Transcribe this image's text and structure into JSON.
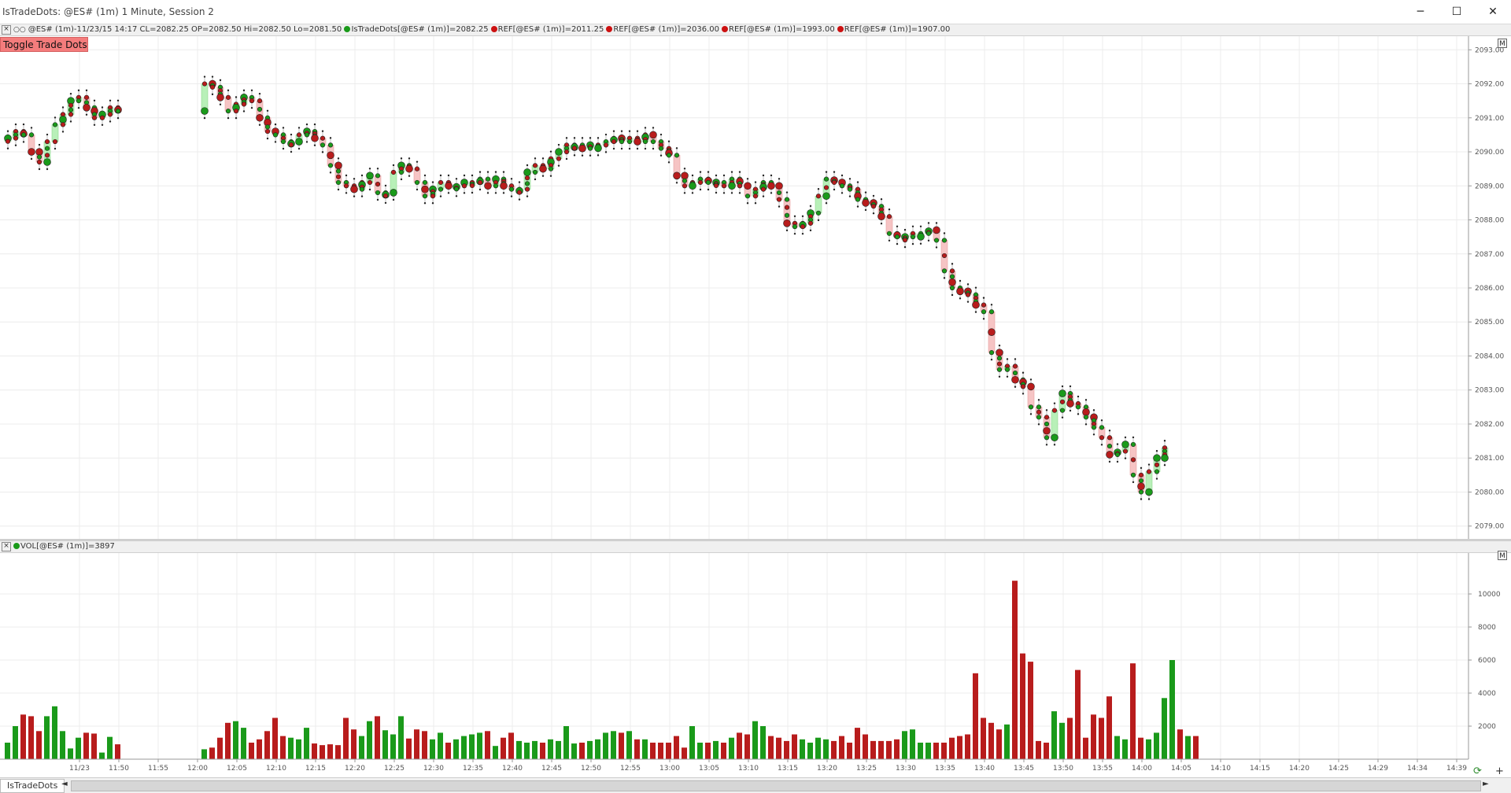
{
  "window": {
    "title": "IsTradeDots: @ES# (1m) 1 Minute, Session 2"
  },
  "price_pane": {
    "info_prefix": "@ES# (1m)-11/23/15 14:17 CL=2082.25 OP=2082.50 Hi=2082.50 Lo=2081.50",
    "studies": [
      {
        "label": "IsTradeDots[@ES# (1m)]=2082.25",
        "color": "#1a9a1a"
      },
      {
        "label": "REF[@ES# (1m)]=2011.25",
        "color": "#cc1111"
      },
      {
        "label": "REF[@ES# (1m)]=2036.00",
        "color": "#cc1111"
      },
      {
        "label": "REF[@ES# (1m)]=1993.00",
        "color": "#cc1111"
      },
      {
        "label": "REF[@ES# (1m)]=1907.00",
        "color": "#cc1111"
      }
    ],
    "toggle_button": "Toggle Trade Dots",
    "m_button": "M"
  },
  "volume_pane": {
    "info": "VOL[@ES# (1m)]=3897",
    "m_button": "M"
  },
  "bottom": {
    "tab": "IsTradeDots",
    "left_arrow": "◄",
    "right_arrow": "►"
  },
  "colors": {
    "up": "#1a9a1a",
    "down": "#b81c1c",
    "up_fill": "#b8f0b8",
    "down_fill": "#f6c4c4"
  },
  "chart_data": [
    {
      "type": "line",
      "series": [
        {
          "values": [
            2090.4,
            2090.6,
            2090.5,
            2090.0,
            2089.7,
            2090.3,
            2090.8,
            2091.1,
            2091.5,
            2091.6,
            2091.3,
            2091.0,
            2091.1,
            2091.3,
            2091.2,
            2092.0,
            2091.9,
            2091.6,
            2091.2,
            2091.4,
            2091.6,
            2091.5,
            2091.0,
            2090.6,
            2090.5,
            2090.3,
            2090.3,
            2090.5,
            2090.6,
            2090.4,
            2090.2,
            2089.6,
            2089.1,
            2089.0,
            2088.9,
            2089.1,
            2089.3,
            2088.8,
            2088.8,
            2089.4,
            2089.6,
            2089.5,
            2089.1,
            2088.7,
            2088.9,
            2089.1,
            2089.0,
            2089.0,
            2089.1,
            2089.1,
            2089.2,
            2089.0,
            2089.2,
            2089.0,
            2088.9,
            2088.9,
            2089.4,
            2089.6,
            2089.5,
            2089.8,
            2090.0,
            2090.2,
            2090.2,
            2090.1,
            2090.2,
            2090.2,
            2090.3,
            2090.4,
            2090.3,
            2090.4,
            2090.3,
            2090.5,
            2090.3,
            2090.1,
            2089.9,
            2089.3,
            2089.0,
            2089.1,
            2089.2,
            2089.1,
            2089.1,
            2089.0,
            2089.2,
            2089.0,
            2088.7,
            2088.9,
            2089.1,
            2089.0,
            2088.6,
            2087.9,
            2087.8,
            2087.9,
            2088.2,
            2088.7,
            2089.2,
            2089.1,
            2089.0,
            2088.9,
            2088.6,
            2088.5,
            2088.4,
            2088.1,
            2087.6,
            2087.5,
            2087.5,
            2087.6,
            2087.6,
            2087.7,
            2087.4,
            2086.5,
            2086.0,
            2085.9,
            2085.8,
            2085.5,
            2085.3,
            2084.1,
            2083.6,
            2083.7,
            2083.3,
            2083.1,
            2082.5,
            2082.2,
            2081.6,
            2082.4,
            2082.9,
            2082.6,
            2082.5,
            2082.2,
            2081.9,
            2081.6,
            2081.1,
            2081.2,
            2081.4,
            2080.5,
            2080.0,
            2080.6,
            2081.0,
            2081.3
          ]
        }
      ],
      "ylim": [
        2078.6,
        2093.4
      ],
      "y_ticks": [
        "2093.00",
        "2092.00",
        "2091.00",
        "2090.00",
        "2089.00",
        "2088.00",
        "2087.00",
        "2086.00",
        "2085.00",
        "2084.00",
        "2083.00",
        "2082.00",
        "2081.00",
        "2080.00",
        "2079.00"
      ]
    },
    {
      "type": "bar",
      "values": [
        1000,
        2000,
        2700,
        2600,
        1700,
        2600,
        3200,
        1700,
        650,
        1300,
        1600,
        1550,
        400,
        1350,
        900,
        600,
        700,
        1300,
        2200,
        2300,
        1900,
        1000,
        1200,
        1700,
        2500,
        1400,
        1300,
        1200,
        1900,
        950,
        850,
        900,
        850,
        2500,
        1800,
        1400,
        2300,
        2600,
        1750,
        1500,
        2600,
        1250,
        1800,
        1700,
        1200,
        1600,
        1000,
        1200,
        1400,
        1500,
        1600,
        1700,
        800,
        1300,
        1600,
        1100,
        1000,
        1100,
        1000,
        1200,
        1100,
        2000,
        950,
        1000,
        1100,
        1200,
        1600,
        1700,
        1600,
        1700,
        1200,
        1200,
        1000,
        1000,
        1000,
        1400,
        700,
        2000,
        1000,
        1000,
        1100,
        1000,
        1300,
        1600,
        1500,
        2300,
        2000,
        1400,
        1300,
        1100,
        1500,
        1200,
        1000,
        1300,
        1200,
        1100,
        1400,
        1000,
        1900,
        1500,
        1100,
        1100,
        1100,
        1200,
        1700,
        1800,
        1000,
        1000,
        1000,
        1000,
        1300,
        1400,
        1500,
        5200,
        2500,
        2200,
        1800,
        2100,
        10800,
        6400,
        5900,
        1100,
        1000,
        2900,
        2200,
        2500,
        5400,
        1300,
        2700,
        2500,
        3800,
        1400,
        1200,
        5800,
        1300,
        1200,
        1600,
        3700,
        6000,
        1800,
        1400,
        1400
      ],
      "y_ticks": [
        "10000",
        "8000",
        "6000",
        "4000",
        "2000"
      ],
      "x_ticks": [
        "11/23",
        "11:50",
        "11:55",
        "12:00",
        "12:05",
        "12:10",
        "12:15",
        "12:20",
        "12:25",
        "12:30",
        "12:35",
        "12:40",
        "12:45",
        "12:50",
        "12:55",
        "13:00",
        "13:05",
        "13:10",
        "13:15",
        "13:20",
        "13:25",
        "13:30",
        "13:35",
        "13:40",
        "13:45",
        "13:50",
        "13:55",
        "14:00",
        "14:05",
        "14:10",
        "14:15",
        "14:20",
        "14:25",
        "14:29",
        "14:34",
        "14:39"
      ]
    }
  ]
}
